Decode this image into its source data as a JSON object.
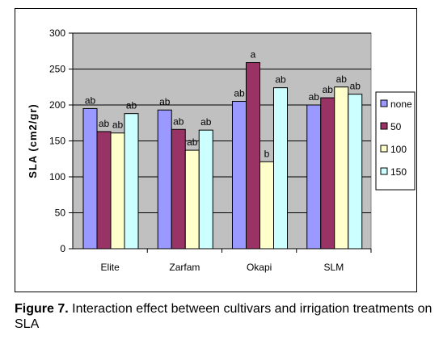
{
  "chart_data": {
    "type": "bar",
    "categories": [
      "Elite",
      "Zarfam",
      "Okapi",
      "SLM"
    ],
    "series": [
      {
        "name": "none",
        "color": "#9999ff",
        "values": [
          195,
          193,
          205,
          200
        ],
        "labels": [
          "ab",
          "ab",
          "ab",
          "ab"
        ]
      },
      {
        "name": "50",
        "color": "#993366",
        "values": [
          163,
          166,
          259,
          210
        ],
        "labels": [
          "ab",
          "ab",
          "a",
          "ab"
        ]
      },
      {
        "name": "100",
        "color": "#ffffcc",
        "values": [
          161,
          137,
          121,
          225
        ],
        "labels": [
          "ab",
          "ab",
          "b",
          "ab"
        ]
      },
      {
        "name": "150",
        "color": "#ccffff",
        "values": [
          188,
          165,
          224,
          215
        ],
        "labels": [
          "ab",
          "ab",
          "ab",
          "ab"
        ]
      }
    ],
    "ylabel": "SLA (cm2/gr)",
    "xlabel": "",
    "ylim": [
      0,
      300
    ],
    "yticks": [
      0,
      50,
      100,
      150,
      200,
      250,
      300
    ],
    "grid": true,
    "plot_background": "#c0c0c0",
    "legend_position": "right"
  },
  "caption": {
    "label": "Figure 7.",
    "text": " Interaction effect between cultivars and irrigation treatments on SLA"
  }
}
